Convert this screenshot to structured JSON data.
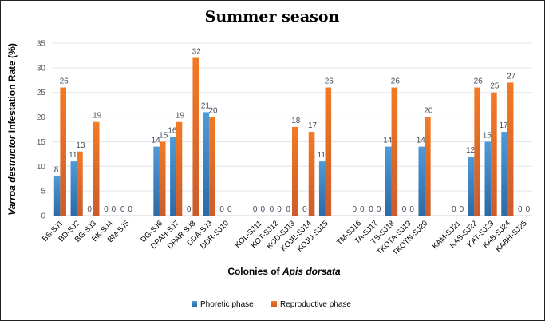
{
  "chart_data": {
    "type": "bar",
    "title": "Summer season",
    "xlabel": {
      "prefix": "Colonies of ",
      "italic": "Apis dorsata"
    },
    "ylabel": {
      "italic": "Varroa destructor",
      "suffix": " Infestation Rate (%)"
    },
    "ylim": [
      0,
      35
    ],
    "yticks": [
      0,
      5,
      10,
      15,
      20,
      25,
      30,
      35
    ],
    "grid": true,
    "legend_position": "bottom",
    "category_groups": [
      [
        "BS-SJ1",
        "BD-SJ2",
        "BG-SJ3",
        "BK-SJ4",
        "BM-SJ5"
      ],
      [
        "DG-SJ6",
        "DPAH-SJ7",
        "DPAR-SJ8",
        "DDA-SJ9",
        "DDR-SJ10"
      ],
      [
        "KOL-SJ11",
        "KOT-SJ12",
        "KOD-SJ13",
        "KOJE-SJ14",
        "KOJU-SJ15"
      ],
      [
        "TM-SJ16",
        "TA-SJ17",
        "TS-SJ18",
        "TKOTA-SJ19",
        "TKOTN-SJ20"
      ],
      [
        "KAM-SJ21",
        "KAS-SJ22",
        "KAT-SJ23",
        "KAB-SJ24",
        "KABH-SJ25"
      ]
    ],
    "series": [
      {
        "name": "Phoretic phase",
        "color": "#3f86c8",
        "values": [
          8,
          11,
          0,
          0,
          0,
          14,
          16,
          0,
          21,
          0,
          0,
          0,
          0,
          0,
          11,
          0,
          0,
          14,
          0,
          14,
          0,
          12,
          15,
          17,
          0
        ]
      },
      {
        "name": "Reproductive phase",
        "color": "#ee7424",
        "values": [
          26,
          13,
          19,
          0,
          0,
          15,
          19,
          32,
          20,
          0,
          0,
          0,
          18,
          17,
          26,
          0,
          0,
          26,
          0,
          20,
          0,
          26,
          25,
          27,
          0
        ]
      }
    ]
  }
}
